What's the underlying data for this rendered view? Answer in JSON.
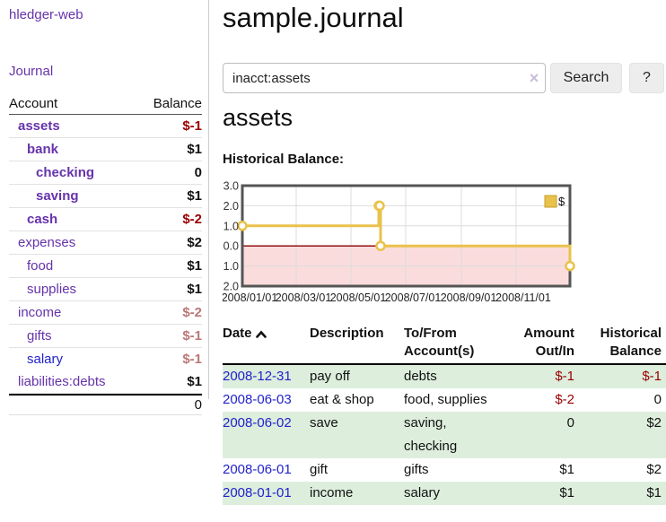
{
  "colors": {
    "link_purple": "#6633aa",
    "link_blue": "#2222cc",
    "negative_strong": "#990000",
    "negative_faded": "#bb7777",
    "row_shade_green": "#ddeedd",
    "chart_line_gold": "#e9c24b",
    "chart_negative_fill": "#fbdcdc",
    "chart_zero_line": "#8b0000",
    "button_gray": "#ededed"
  },
  "app": {
    "brand": "hledger-web",
    "nav_journal": "Journal"
  },
  "sidebar": {
    "header": {
      "account": "Account",
      "balance": "Balance"
    },
    "accounts": [
      {
        "name": "assets",
        "indent": 1,
        "bold": true,
        "link_color": "purple",
        "balance": "$-1",
        "balance_style": "neg"
      },
      {
        "name": "bank",
        "indent": 2,
        "bold": true,
        "link_color": "purple",
        "balance": "$1",
        "balance_style": "pos"
      },
      {
        "name": "checking",
        "indent": 3,
        "bold": true,
        "link_color": "purple",
        "balance": "0",
        "balance_style": "pos"
      },
      {
        "name": "saving",
        "indent": 3,
        "bold": true,
        "link_color": "purple",
        "balance": "$1",
        "balance_style": "pos"
      },
      {
        "name": "cash",
        "indent": 2,
        "bold": true,
        "link_color": "purple",
        "balance": "$-2",
        "balance_style": "neg"
      },
      {
        "name": "expenses",
        "indent": 1,
        "bold": false,
        "link_color": "purple",
        "balance": "$2",
        "balance_style": "pos"
      },
      {
        "name": "food",
        "indent": 2,
        "bold": false,
        "link_color": "purple",
        "balance": "$1",
        "balance_style": "pos"
      },
      {
        "name": "supplies",
        "indent": 2,
        "bold": false,
        "link_color": "purple",
        "balance": "$1",
        "balance_style": "pos"
      },
      {
        "name": "income",
        "indent": 1,
        "bold": false,
        "link_color": "purple",
        "balance": "$-2",
        "balance_style": "faded"
      },
      {
        "name": "gifts",
        "indent": 2,
        "bold": false,
        "link_color": "purple",
        "balance": "$-1",
        "balance_style": "faded"
      },
      {
        "name": "salary",
        "indent": 2,
        "bold": false,
        "link_color": "blue",
        "balance": "$-1",
        "balance_style": "faded"
      },
      {
        "name": "liabilities:debts",
        "indent": 1,
        "bold": false,
        "link_color": "purple",
        "balance": "$1",
        "balance_style": "pos"
      }
    ],
    "total": "0"
  },
  "main": {
    "title": "sample.journal",
    "search": {
      "value": "inacct:assets",
      "clear_icon": "×",
      "search_label": "Search",
      "help_label": "?"
    },
    "account_heading": "assets",
    "section_label": "Historical Balance:"
  },
  "chart_data": {
    "type": "line",
    "title": "Historical Balance:",
    "step": true,
    "series": [
      {
        "name": "$",
        "color": "#e9c24b",
        "points": [
          [
            "2008/01/01",
            1
          ],
          [
            "2008/06/01",
            2
          ],
          [
            "2008/06/02",
            2
          ],
          [
            "2008/06/03",
            0
          ],
          [
            "2008/12/31",
            -1
          ]
        ]
      }
    ],
    "ylim": [
      -2,
      3
    ],
    "yticks": [
      "3.0",
      "2.0",
      "1.0",
      "0.0",
      "-1.0",
      "-2.0"
    ],
    "xticks": [
      "2008/01/01",
      "2008/03/01",
      "2008/05/01",
      "2008/07/01",
      "2008/09/01",
      "2008/11/01"
    ],
    "grid": true,
    "legend_position": "top-right",
    "negative_fill": "#fbdcdc",
    "zero_line_color": "#8b0000"
  },
  "register": {
    "headers": [
      "Date",
      "Description",
      "To/From Account(s)",
      "Amount Out/In",
      "Historical Balance"
    ],
    "rows": [
      {
        "date": "2008-12-31",
        "description": "pay off",
        "accounts": "debts",
        "amount": "$-1",
        "amount_style": "neg",
        "balance": "$-1",
        "balance_style": "neg",
        "shaded": true
      },
      {
        "date": "2008-06-03",
        "description": "eat & shop",
        "accounts": "food, supplies",
        "amount": "$-2",
        "amount_style": "neg",
        "balance": "0",
        "balance_style": "pos",
        "shaded": false
      },
      {
        "date": "2008-06-02",
        "description": "save",
        "accounts": "saving, checking",
        "amount": "0",
        "amount_style": "pos",
        "balance": "$2",
        "balance_style": "pos",
        "shaded": true
      },
      {
        "date": "2008-06-01",
        "description": "gift",
        "accounts": "gifts",
        "amount": "$1",
        "amount_style": "pos",
        "balance": "$2",
        "balance_style": "pos",
        "shaded": false
      },
      {
        "date": "2008-01-01",
        "description": "income",
        "accounts": "salary",
        "amount": "$1",
        "amount_style": "pos",
        "balance": "$1",
        "balance_style": "pos",
        "shaded": true
      }
    ]
  }
}
